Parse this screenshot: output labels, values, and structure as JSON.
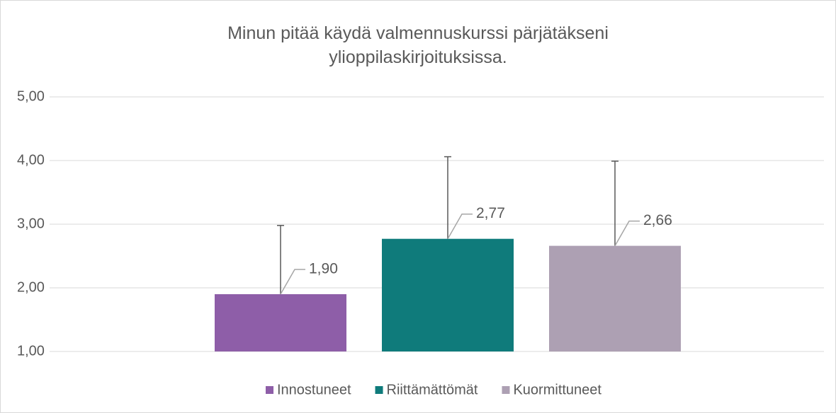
{
  "chart_data": {
    "type": "bar",
    "title": "Minun pitää käydä valmennuskurssi pärjätäkseni ylioppilaskirjoituksissa.",
    "series": [
      {
        "name": "Innostuneet",
        "color": "#8e5ea8",
        "values": [
          1.9
        ],
        "value_labels": [
          "1,90"
        ],
        "errors": [
          1.08
        ]
      },
      {
        "name": "Riittämättömät",
        "color": "#0f7b7b",
        "values": [
          2.77
        ],
        "value_labels": [
          "2,77"
        ],
        "errors": [
          1.29
        ]
      },
      {
        "name": "Kuormittuneet",
        "color": "#ada0b3",
        "values": [
          2.66
        ],
        "value_labels": [
          "2,66"
        ],
        "errors": [
          1.33
        ]
      }
    ],
    "ylim": [
      1,
      5
    ],
    "yticks": [
      {
        "value": 1,
        "label": "1,00"
      },
      {
        "value": 2,
        "label": "2,00"
      },
      {
        "value": 3,
        "label": "3,00"
      },
      {
        "value": 4,
        "label": "4,00"
      },
      {
        "value": 5,
        "label": "5,00"
      }
    ],
    "grid": true,
    "legend": "bottom"
  }
}
